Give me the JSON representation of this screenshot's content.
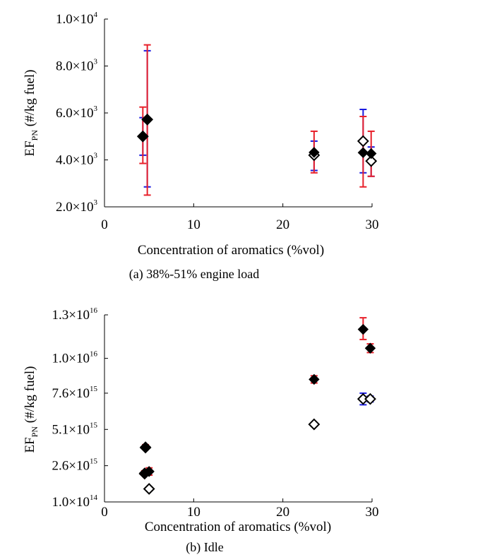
{
  "chart_data": [
    {
      "type": "scatter",
      "caption": "(a) 38%-51% engine load",
      "xlabel": "Concentration of aromatics (%vol)",
      "ylabel": {
        "main": "EF",
        "sub": "PN",
        "rest": " (#/kg fuel)"
      },
      "xlim": [
        0,
        30
      ],
      "ylim": [
        2000,
        10000
      ],
      "x_ticks": [
        {
          "value": 0,
          "label": "0"
        },
        {
          "value": 10,
          "label": "10"
        },
        {
          "value": 20,
          "label": "20"
        },
        {
          "value": 30,
          "label": "30"
        }
      ],
      "y_ticks": [
        {
          "value": 2000,
          "mant": "2.0×10",
          "exp": "3"
        },
        {
          "value": 4000,
          "mant": "4.0×10",
          "exp": "3"
        },
        {
          "value": 6000,
          "mant": "6.0×10",
          "exp": "3"
        },
        {
          "value": 8000,
          "mant": "8.0×10",
          "exp": "3"
        },
        {
          "value": 10000,
          "mant": "1.0×10",
          "exp": "4"
        }
      ],
      "series": [
        {
          "name": "filled",
          "marker": "filled-diamond",
          "error_color": "#e8202a",
          "points": [
            {
              "x": 4.3,
              "y": 5020,
              "lo": 3850,
              "hi": 6250
            },
            {
              "x": 4.8,
              "y": 5720,
              "lo": 2500,
              "hi": 8900
            },
            {
              "x": 23.5,
              "y": 4320,
              "lo": 3450,
              "hi": 5220
            },
            {
              "x": 29.0,
              "y": 4310,
              "lo": 2850,
              "hi": 5850
            },
            {
              "x": 29.9,
              "y": 4270,
              "lo": 3300,
              "hi": 5220
            }
          ]
        },
        {
          "name": "open",
          "marker": "open-diamond",
          "error_color": "#1a1ae0",
          "points": [
            {
              "x": 4.3,
              "y": 5000,
              "lo": 4200,
              "hi": 5800
            },
            {
              "x": 4.8,
              "y": 5720,
              "lo": 2850,
              "hi": 8650
            },
            {
              "x": 23.5,
              "y": 4200,
              "lo": 3550,
              "hi": 4800
            },
            {
              "x": 29.0,
              "y": 4800,
              "lo": 3450,
              "hi": 6150
            },
            {
              "x": 29.9,
              "y": 3950,
              "lo": 3300,
              "hi": 4550
            }
          ]
        }
      ]
    },
    {
      "type": "scatter",
      "caption": "(b) Idle",
      "xlabel": "Concentration of aromatics (%vol)",
      "ylabel": {
        "main": "EF",
        "sub": "PN",
        "rest": " (#/kg fuel)"
      },
      "xlim": [
        0,
        30
      ],
      "ylim": [
        100000000000000.0,
        1.3e+16
      ],
      "x_ticks": [
        {
          "value": 0,
          "label": "0"
        },
        {
          "value": 10,
          "label": "10"
        },
        {
          "value": 20,
          "label": "20"
        },
        {
          "value": 30,
          "label": "30"
        }
      ],
      "y_ticks": [
        {
          "value": 100000000000000.0,
          "mant": "1.0×10",
          "exp": "14"
        },
        {
          "value": 2600000000000000.0,
          "mant": "2.6×10",
          "exp": "15"
        },
        {
          "value": 5100000000000000.0,
          "mant": "5.1×10",
          "exp": "15"
        },
        {
          "value": 7600000000000000.0,
          "mant": "7.6×10",
          "exp": "15"
        },
        {
          "value": 1e+16,
          "mant": "1.0×10",
          "exp": "16"
        },
        {
          "value": 1.3e+16,
          "mant": "1.3×10",
          "exp": "16"
        }
      ],
      "series": [
        {
          "name": "filled",
          "marker": "filled-diamond",
          "error_color": "#e8202a",
          "points": [
            {
              "x": 4.6,
              "y": 3900000000000000.0,
              "lo": 3750000000000000.0,
              "hi": 4050000000000000.0
            },
            {
              "x": 4.5,
              "y": 2100000000000000.0,
              "lo": 2000000000000000.0,
              "hi": 2250000000000000.0
            },
            {
              "x": 5.0,
              "y": 2200000000000000.0,
              "lo": 1950000000000000.0,
              "hi": 2450000000000000.0
            },
            {
              "x": 23.5,
              "y": 8550000000000000.0,
              "lo": 8300000000000000.0,
              "hi": 8800000000000000.0
            },
            {
              "x": 29.0,
              "y": 1.2e+16,
              "lo": 1.13e+16,
              "hi": 1.28e+16
            },
            {
              "x": 29.8,
              "y": 1.07e+16,
              "lo": 1.04e+16,
              "hi": 1.1e+16
            }
          ]
        },
        {
          "name": "open",
          "marker": "open-diamond",
          "error_color": "#1a1ae0",
          "points": [
            {
              "x": 4.6,
              "y": 3850000000000000.0,
              "lo": 3750000000000000.0,
              "hi": 3950000000000000.0
            },
            {
              "x": 4.5,
              "y": 2050000000000000.0,
              "lo": 1950000000000000.0,
              "hi": 2150000000000000.0
            },
            {
              "x": 5.0,
              "y": 1000000000000000.0,
              "lo": 900000000000000.0,
              "hi": 1100000000000000.0
            },
            {
              "x": 23.5,
              "y": 5450000000000000.0,
              "lo": 5350000000000000.0,
              "hi": 5550000000000000.0
            },
            {
              "x": 29.0,
              "y": 7200000000000000.0,
              "lo": 6800000000000000.0,
              "hi": 7600000000000000.0
            },
            {
              "x": 29.8,
              "y": 7200000000000000.0,
              "lo": 7000000000000000.0,
              "hi": 7400000000000000.0
            }
          ]
        }
      ]
    }
  ]
}
